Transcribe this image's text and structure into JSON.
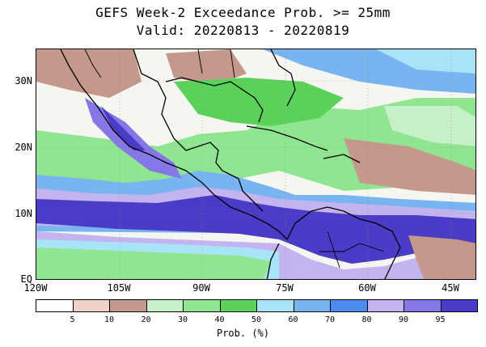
{
  "title_line1": "GEFS Week-2 Exceedance Prob. >= 25mm",
  "title_line2": "Valid: 20220813 - 20220819",
  "lat_labels": [
    "30N",
    "20N",
    "10N",
    "EQ"
  ],
  "lon_labels": [
    "120W",
    "105W",
    "90W",
    "75W",
    "60W",
    "45W"
  ],
  "colorbar": {
    "title": "Prob. (%)",
    "tick_labels": [
      "5",
      "10",
      "20",
      "30",
      "40",
      "50",
      "60",
      "70",
      "80",
      "90",
      "95"
    ],
    "colors": [
      "#ffffff",
      "#f0d2c8",
      "#c4988a",
      "#c8f0c8",
      "#90e690",
      "#5ad25a",
      "#a8e4f8",
      "#78b4f0",
      "#4a8cf0",
      "#c3b4f0",
      "#8478e6",
      "#4b3cc8"
    ]
  }
}
